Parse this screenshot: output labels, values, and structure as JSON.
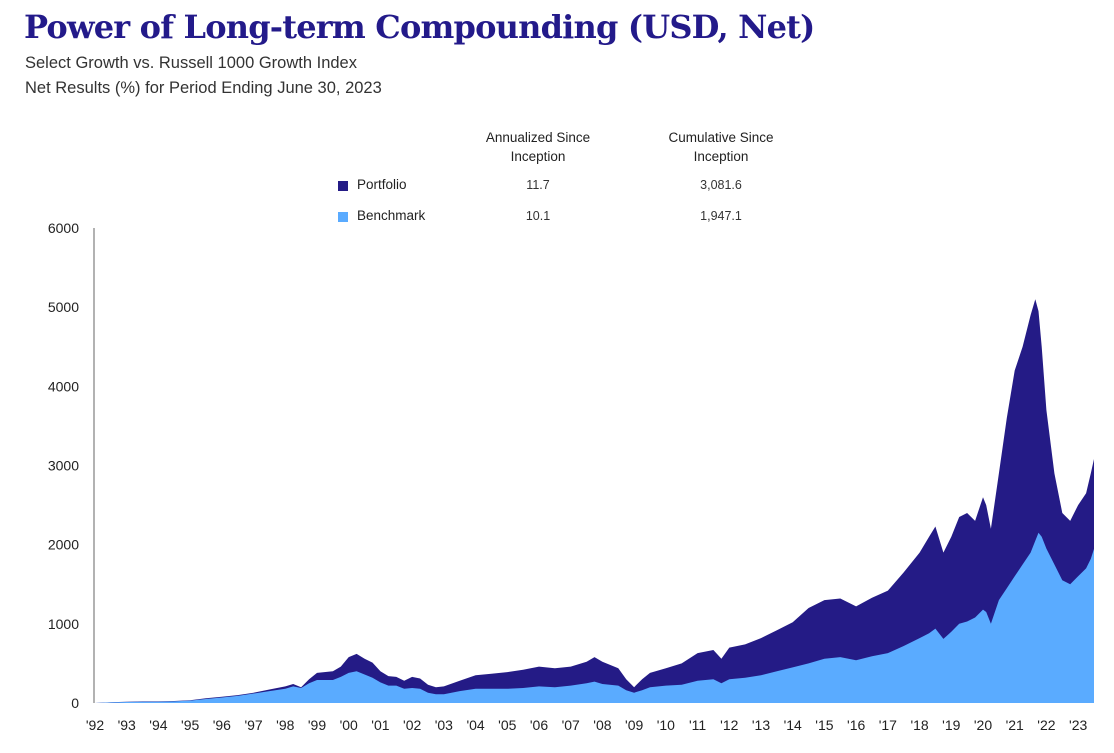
{
  "header": {
    "title": "Power of Long-term Compounding (USD, Net)",
    "subtitle_1": "Select Growth vs. Russell 1000 Growth Index",
    "subtitle_2": "Net Results (%) for Period Ending June 30, 2023"
  },
  "legend": {
    "col1_line1": "Annualized Since",
    "col1_line2": "Inception",
    "col2_line1": "Cumulative Since",
    "col2_line2": "Inception",
    "rows": [
      {
        "name": "Portfolio",
        "annualized": "11.7",
        "cumulative": "3,081.6",
        "color": "#241b86"
      },
      {
        "name": "Benchmark",
        "annualized": "10.1",
        "cumulative": "1,947.1",
        "color": "#5aabff"
      }
    ]
  },
  "chart_data": {
    "type": "area",
    "title": "Power of Long-term Compounding (USD, Net)",
    "ylim": [
      0,
      6000
    ],
    "yticks": [
      "0",
      "1000",
      "2000",
      "3000",
      "4000",
      "5000",
      "6000"
    ],
    "xticks": [
      "'92",
      "'93",
      "'94",
      "'95",
      "'96",
      "'97",
      "'98",
      "'99",
      "'00",
      "'01",
      "'02",
      "'03",
      "'04",
      "'05",
      "'06",
      "'07",
      "'08",
      "'09",
      "'10",
      "'11",
      "'12",
      "'13",
      "'14",
      "'15",
      "'16",
      "'17",
      "'18",
      "'19",
      "'20",
      "'21",
      "'22",
      "'23"
    ],
    "xrange": [
      1992.0,
      2023.5
    ],
    "grid": false,
    "series": [
      {
        "name": "Portfolio",
        "color": "#241b86",
        "points": [
          [
            1992.0,
            0
          ],
          [
            1992.5,
            10
          ],
          [
            1993.0,
            15
          ],
          [
            1993.5,
            20
          ],
          [
            1994.0,
            20
          ],
          [
            1994.5,
            25
          ],
          [
            1995.0,
            35
          ],
          [
            1995.5,
            60
          ],
          [
            1996.0,
            80
          ],
          [
            1996.5,
            100
          ],
          [
            1997.0,
            130
          ],
          [
            1997.5,
            170
          ],
          [
            1998.0,
            210
          ],
          [
            1998.25,
            240
          ],
          [
            1998.5,
            200
          ],
          [
            1998.75,
            300
          ],
          [
            1999.0,
            380
          ],
          [
            1999.5,
            400
          ],
          [
            1999.75,
            460
          ],
          [
            2000.0,
            580
          ],
          [
            2000.25,
            620
          ],
          [
            2000.5,
            560
          ],
          [
            2000.75,
            510
          ],
          [
            2001.0,
            400
          ],
          [
            2001.25,
            340
          ],
          [
            2001.5,
            330
          ],
          [
            2001.75,
            280
          ],
          [
            2002.0,
            330
          ],
          [
            2002.25,
            310
          ],
          [
            2002.5,
            230
          ],
          [
            2002.75,
            200
          ],
          [
            2003.0,
            210
          ],
          [
            2003.5,
            280
          ],
          [
            2004.0,
            350
          ],
          [
            2004.5,
            370
          ],
          [
            2005.0,
            390
          ],
          [
            2005.5,
            420
          ],
          [
            2006.0,
            460
          ],
          [
            2006.5,
            440
          ],
          [
            2007.0,
            460
          ],
          [
            2007.5,
            520
          ],
          [
            2007.75,
            580
          ],
          [
            2008.0,
            520
          ],
          [
            2008.5,
            440
          ],
          [
            2008.75,
            300
          ],
          [
            2009.0,
            200
          ],
          [
            2009.25,
            300
          ],
          [
            2009.5,
            380
          ],
          [
            2010.0,
            440
          ],
          [
            2010.5,
            500
          ],
          [
            2011.0,
            630
          ],
          [
            2011.5,
            670
          ],
          [
            2011.75,
            560
          ],
          [
            2012.0,
            700
          ],
          [
            2012.5,
            740
          ],
          [
            2013.0,
            820
          ],
          [
            2013.5,
            920
          ],
          [
            2014.0,
            1020
          ],
          [
            2014.5,
            1200
          ],
          [
            2015.0,
            1300
          ],
          [
            2015.5,
            1320
          ],
          [
            2016.0,
            1220
          ],
          [
            2016.5,
            1330
          ],
          [
            2017.0,
            1420
          ],
          [
            2017.5,
            1650
          ],
          [
            2018.0,
            1900
          ],
          [
            2018.3,
            2100
          ],
          [
            2018.5,
            2230
          ],
          [
            2018.75,
            1900
          ],
          [
            2019.0,
            2100
          ],
          [
            2019.25,
            2350
          ],
          [
            2019.5,
            2400
          ],
          [
            2019.75,
            2300
          ],
          [
            2020.0,
            2600
          ],
          [
            2020.1,
            2500
          ],
          [
            2020.25,
            2200
          ],
          [
            2020.5,
            2900
          ],
          [
            2020.75,
            3600
          ],
          [
            2021.0,
            4200
          ],
          [
            2021.25,
            4500
          ],
          [
            2021.5,
            4900
          ],
          [
            2021.65,
            5100
          ],
          [
            2021.75,
            4950
          ],
          [
            2021.85,
            4500
          ],
          [
            2022.0,
            3700
          ],
          [
            2022.25,
            2900
          ],
          [
            2022.5,
            2400
          ],
          [
            2022.75,
            2300
          ],
          [
            2023.0,
            2500
          ],
          [
            2023.25,
            2650
          ],
          [
            2023.4,
            2900
          ],
          [
            2023.5,
            3081.6
          ]
        ]
      },
      {
        "name": "Benchmark",
        "color": "#5aabff",
        "points": [
          [
            1992.0,
            0
          ],
          [
            1992.5,
            8
          ],
          [
            1993.0,
            12
          ],
          [
            1993.5,
            15
          ],
          [
            1994.0,
            15
          ],
          [
            1994.5,
            20
          ],
          [
            1995.0,
            30
          ],
          [
            1995.5,
            50
          ],
          [
            1996.0,
            70
          ],
          [
            1996.5,
            90
          ],
          [
            1997.0,
            120
          ],
          [
            1997.5,
            150
          ],
          [
            1998.0,
            180
          ],
          [
            1998.25,
            210
          ],
          [
            1998.5,
            190
          ],
          [
            1998.75,
            250
          ],
          [
            1999.0,
            290
          ],
          [
            1999.5,
            290
          ],
          [
            1999.75,
            330
          ],
          [
            2000.0,
            380
          ],
          [
            2000.25,
            400
          ],
          [
            2000.5,
            360
          ],
          [
            2000.75,
            320
          ],
          [
            2001.0,
            260
          ],
          [
            2001.25,
            220
          ],
          [
            2001.5,
            220
          ],
          [
            2001.75,
            180
          ],
          [
            2002.0,
            190
          ],
          [
            2002.25,
            180
          ],
          [
            2002.5,
            130
          ],
          [
            2002.75,
            110
          ],
          [
            2003.0,
            110
          ],
          [
            2003.5,
            150
          ],
          [
            2004.0,
            180
          ],
          [
            2004.5,
            180
          ],
          [
            2005.0,
            180
          ],
          [
            2005.5,
            190
          ],
          [
            2006.0,
            210
          ],
          [
            2006.5,
            200
          ],
          [
            2007.0,
            220
          ],
          [
            2007.5,
            250
          ],
          [
            2007.75,
            270
          ],
          [
            2008.0,
            240
          ],
          [
            2008.5,
            220
          ],
          [
            2008.75,
            160
          ],
          [
            2009.0,
            130
          ],
          [
            2009.25,
            160
          ],
          [
            2009.5,
            200
          ],
          [
            2010.0,
            220
          ],
          [
            2010.5,
            230
          ],
          [
            2011.0,
            280
          ],
          [
            2011.5,
            300
          ],
          [
            2011.75,
            250
          ],
          [
            2012.0,
            300
          ],
          [
            2012.5,
            320
          ],
          [
            2013.0,
            350
          ],
          [
            2013.5,
            400
          ],
          [
            2014.0,
            450
          ],
          [
            2014.5,
            500
          ],
          [
            2015.0,
            560
          ],
          [
            2015.5,
            580
          ],
          [
            2016.0,
            540
          ],
          [
            2016.5,
            590
          ],
          [
            2017.0,
            630
          ],
          [
            2017.5,
            720
          ],
          [
            2018.0,
            820
          ],
          [
            2018.3,
            880
          ],
          [
            2018.5,
            940
          ],
          [
            2018.75,
            810
          ],
          [
            2019.0,
            900
          ],
          [
            2019.25,
            1000
          ],
          [
            2019.5,
            1030
          ],
          [
            2019.75,
            1080
          ],
          [
            2020.0,
            1180
          ],
          [
            2020.1,
            1150
          ],
          [
            2020.25,
            1000
          ],
          [
            2020.5,
            1300
          ],
          [
            2020.75,
            1450
          ],
          [
            2021.0,
            1600
          ],
          [
            2021.25,
            1750
          ],
          [
            2021.5,
            1900
          ],
          [
            2021.65,
            2050
          ],
          [
            2021.75,
            2150
          ],
          [
            2021.85,
            2100
          ],
          [
            2022.0,
            1950
          ],
          [
            2022.25,
            1750
          ],
          [
            2022.5,
            1550
          ],
          [
            2022.75,
            1500
          ],
          [
            2023.0,
            1600
          ],
          [
            2023.25,
            1700
          ],
          [
            2023.4,
            1820
          ],
          [
            2023.5,
            1947.1
          ]
        ]
      }
    ]
  }
}
